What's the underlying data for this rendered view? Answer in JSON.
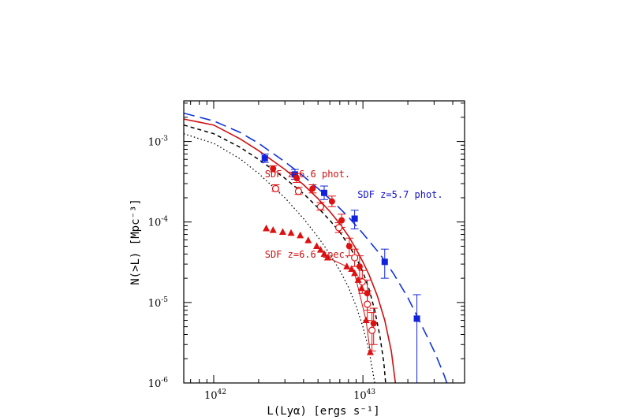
{
  "chart_data": {
    "type": "scatter",
    "title": "",
    "xlabel": "L(Lyα) [ergs s⁻¹]",
    "ylabel": "N(>L) [Mpc⁻³]",
    "x_scale": "log",
    "y_scale": "log",
    "xlim": [
      6.3e+41,
      4.8e+43
    ],
    "ylim": [
      1e-06,
      0.0032
    ],
    "x_ticks": [
      {
        "value": 1e+42,
        "base": "10",
        "exp": "42"
      },
      {
        "value": 1e+43,
        "base": "10",
        "exp": "43"
      }
    ],
    "y_ticks": [
      {
        "value": 0.001,
        "base": "10",
        "exp": "-3"
      },
      {
        "value": 0.0001,
        "base": "10",
        "exp": "-4"
      },
      {
        "value": 1e-05,
        "base": "10",
        "exp": "-5"
      },
      {
        "value": 1e-06,
        "base": "10",
        "exp": "-6"
      }
    ],
    "grid": false,
    "annotations": [
      {
        "text": "SDF z=6.6 phot.",
        "color": "#cc1111",
        "at": [
          2.2e+42,
          0.00036
        ]
      },
      {
        "text": "SDF z=5.7 phot.",
        "color": "#1111cc",
        "at": [
          9.2e+42,
          0.0002
        ]
      },
      {
        "text": "SDF z=6.6 spec.",
        "color": "#cc1111",
        "at": [
          2.2e+42,
          3.6e-05
        ]
      }
    ],
    "series": [
      {
        "kind": "points",
        "marker": "square-filled",
        "color": "#1122dd",
        "points": [
          {
            "x": 2.2e+42,
            "y": 0.00062,
            "err": [
              0.00055,
              0.0007
            ]
          },
          {
            "x": 3.5e+42,
            "y": 0.00039,
            "err": [
              0.00034,
              0.00045
            ]
          },
          {
            "x": 5.5e+42,
            "y": 0.00023,
            "err": [
              0.00019,
              0.00028
            ]
          },
          {
            "x": 8.8e+42,
            "y": 0.00011,
            "err": [
              8.2e-05,
              0.00014
            ]
          },
          {
            "x": 1.4e+43,
            "y": 3.2e-05,
            "err": [
              2e-05,
              4.6e-05
            ]
          },
          {
            "x": 2.3e+43,
            "y": 6.3e-06,
            "err": [
              1e-06,
              1.25e-05
            ]
          }
        ]
      },
      {
        "kind": "points",
        "marker": "circle-filled",
        "color": "#dd1111",
        "points": [
          {
            "x": 2.5e+42,
            "y": 0.00046,
            "err": [
              0.00042,
              0.0005
            ]
          },
          {
            "x": 3.6e+42,
            "y": 0.00035,
            "err": [
              0.00031,
              0.0004
            ]
          },
          {
            "x": 4.6e+42,
            "y": 0.00026,
            "err": [
              0.00023,
              0.00029
            ]
          },
          {
            "x": 6.2e+42,
            "y": 0.00018,
            "err": [
              0.000155,
              0.00021
            ]
          },
          {
            "x": 7.2e+42,
            "y": 0.000105,
            "err": [
              8.6e-05,
              0.000125
            ]
          },
          {
            "x": 8.1e+42,
            "y": 5e-05,
            "err": [
              3.8e-05,
              6.3e-05
            ]
          },
          {
            "x": 9.5e+42,
            "y": 2.8e-05,
            "err": [
              2e-05,
              3.8e-05
            ]
          },
          {
            "x": 1.07e+43,
            "y": 1.3e-05,
            "err": [
              8e-06,
              1.9e-05
            ]
          },
          {
            "x": 1.18e+43,
            "y": 5.5e-06,
            "err": [
              3e-06,
              8.5e-06
            ]
          }
        ]
      },
      {
        "kind": "points",
        "marker": "circle-open",
        "color": "#dd1111",
        "points": [
          {
            "x": 2.6e+42,
            "y": 0.00026,
            "err": [
              0.00024,
              0.00029
            ]
          },
          {
            "x": 3.7e+42,
            "y": 0.00024,
            "err": [
              0.00022,
              0.00027
            ]
          },
          {
            "x": 5.2e+42,
            "y": 0.000155,
            "err": [
              0.00014,
              0.000175
            ]
          },
          {
            "x": 6.9e+42,
            "y": 8.5e-05,
            "err": [
              7.4e-05,
              9.8e-05
            ]
          },
          {
            "x": 8.8e+42,
            "y": 3.6e-05,
            "err": [
              2.8e-05,
              4.6e-05
            ]
          },
          {
            "x": 9.9e+42,
            "y": 1.8e-05,
            "err": [
              1.3e-05,
              2.5e-05
            ]
          },
          {
            "x": 1.07e+43,
            "y": 9.5e-06,
            "err": [
              6e-06,
              1.4e-05
            ]
          },
          {
            "x": 1.15e+43,
            "y": 4.5e-06,
            "err": [
              2.5e-06,
              7.5e-06
            ]
          }
        ]
      },
      {
        "kind": "triangles",
        "marker": "triangle-filled",
        "color": "#dd1111",
        "points": [
          {
            "x": 2.25e+42,
            "y": 8.3e-05
          },
          {
            "x": 2.5e+42,
            "y": 7.9e-05
          },
          {
            "x": 2.9e+42,
            "y": 7.5e-05
          },
          {
            "x": 3.3e+42,
            "y": 7.3e-05
          },
          {
            "x": 3.8e+42,
            "y": 6.8e-05
          },
          {
            "x": 4.3e+42,
            "y": 5.9e-05
          },
          {
            "x": 4.9e+42,
            "y": 5e-05
          },
          {
            "x": 5.2e+42,
            "y": 4.5e-05
          },
          {
            "x": 5.5e+42,
            "y": 4e-05
          },
          {
            "x": 5.8e+42,
            "y": 3.6e-05
          },
          {
            "x": 7.8e+42,
            "y": 2.8e-05
          },
          {
            "x": 8.4e+42,
            "y": 2.6e-05
          },
          {
            "x": 8.8e+42,
            "y": 2.3e-05
          },
          {
            "x": 9.3e+42,
            "y": 1.9e-05
          },
          {
            "x": 9.8e+42,
            "y": 1.5e-05
          },
          {
            "x": 1.05e+43,
            "y": 6e-06
          },
          {
            "x": 1.12e+43,
            "y": 2.4e-06
          }
        ]
      },
      {
        "kind": "line",
        "style": "dashed-long",
        "color": "#1133dd",
        "points": [
          [
            6.3e+41,
            0.00225
          ],
          [
            1e+42,
            0.0018
          ],
          [
            1.5e+42,
            0.0013
          ],
          [
            2e+42,
            0.00095
          ],
          [
            3e+42,
            0.00056
          ],
          [
            4e+42,
            0.00037
          ],
          [
            5e+42,
            0.00026
          ],
          [
            6.5e+42,
            0.00017
          ],
          [
            8e+42,
            0.000115
          ],
          [
            1e+43,
            7.2e-05
          ],
          [
            1.3e+43,
            4e-05
          ],
          [
            1.6e+43,
            2.3e-05
          ],
          [
            2e+43,
            1.15e-05
          ],
          [
            2.5e+43,
            5e-06
          ],
          [
            3e+43,
            2.5e-06
          ],
          [
            3.5e+43,
            1.25e-06
          ],
          [
            3.65e+43,
            1e-06
          ]
        ]
      },
      {
        "kind": "line",
        "style": "solid",
        "color": "#cc1111",
        "points": [
          [
            6.3e+41,
            0.0019
          ],
          [
            1e+42,
            0.0016
          ],
          [
            1.5e+42,
            0.00108
          ],
          [
            2e+42,
            0.00077
          ],
          [
            3e+42,
            0.00045
          ],
          [
            4e+42,
            0.00029
          ],
          [
            5e+42,
            0.000195
          ],
          [
            6e+42,
            0.000135
          ],
          [
            7e+42,
            9.5e-05
          ],
          [
            8e+42,
            6.7e-05
          ],
          [
            9e+42,
            4.6e-05
          ],
          [
            1e+43,
            3.2e-05
          ],
          [
            1.1e+43,
            2.2e-05
          ],
          [
            1.25e+43,
            1.2e-05
          ],
          [
            1.4e+43,
            6e-06
          ],
          [
            1.55e+43,
            2.5e-06
          ],
          [
            1.65e+43,
            1e-06
          ]
        ]
      },
      {
        "kind": "line",
        "style": "dashed-short",
        "color": "#000000",
        "points": [
          [
            6.3e+41,
            0.0016
          ],
          [
            1e+42,
            0.00125
          ],
          [
            1.5e+42,
            0.00085
          ],
          [
            2e+42,
            0.0006
          ],
          [
            3e+42,
            0.00035
          ],
          [
            4e+42,
            0.000225
          ],
          [
            5e+42,
            0.00015
          ],
          [
            6e+42,
            0.000105
          ],
          [
            7e+42,
            7.5e-05
          ],
          [
            8e+42,
            5.2e-05
          ],
          [
            9e+42,
            3.6e-05
          ],
          [
            1e+43,
            2.4e-05
          ],
          [
            1.1e+43,
            1.45e-05
          ],
          [
            1.2e+43,
            8e-06
          ],
          [
            1.3e+43,
            3.8e-06
          ],
          [
            1.38e+43,
            1.8e-06
          ],
          [
            1.42e+43,
            1e-06
          ]
        ]
      },
      {
        "kind": "line",
        "style": "dotted",
        "color": "#000000",
        "points": [
          [
            6.3e+41,
            0.00125
          ],
          [
            1e+42,
            0.00095
          ],
          [
            1.5e+42,
            0.00061
          ],
          [
            2e+42,
            0.0004
          ],
          [
            3e+42,
            0.0002
          ],
          [
            4e+42,
            0.00011
          ],
          [
            5e+42,
            6.5e-05
          ],
          [
            6e+42,
            4e-05
          ],
          [
            7e+42,
            2.5e-05
          ],
          [
            8e+42,
            1.55e-05
          ],
          [
            9e+42,
            9e-06
          ],
          [
            1e+43,
            5e-06
          ],
          [
            1.1e+43,
            2.5e-06
          ],
          [
            1.18e+43,
            1.2e-06
          ],
          [
            1.2e+43,
            1e-06
          ]
        ]
      },
      {
        "kind": "line",
        "style": "thin-connect",
        "color": "#cc1111",
        "points": [
          [
            5.8e+42,
            3.6e-05
          ],
          [
            7.8e+42,
            2.8e-05
          ],
          [
            8.8e+42,
            2.3e-05
          ],
          [
            1.05e+43,
            6e-06
          ],
          [
            1.12e+43,
            2.4e-06
          ]
        ]
      }
    ]
  }
}
